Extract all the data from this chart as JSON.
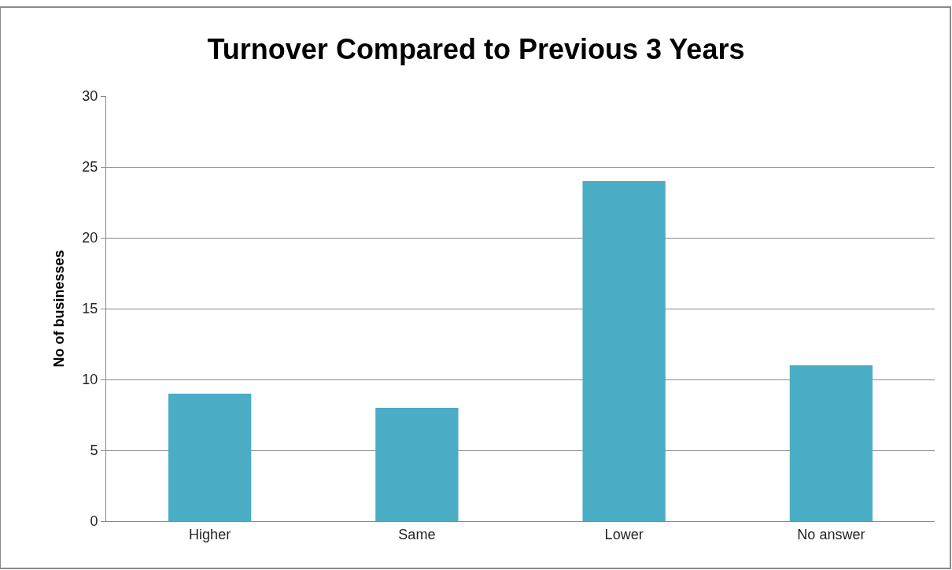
{
  "chart_data": {
    "type": "bar",
    "title": "Turnover Compared to Previous 3 Years",
    "ylabel": "No of businesses",
    "categories": [
      "Higher",
      "Same",
      "Lower",
      "No answer"
    ],
    "values": [
      9,
      8,
      24,
      11
    ],
    "color": "#4bacc6",
    "ylim": [
      0,
      30
    ],
    "yticks": [
      0,
      5,
      10,
      15,
      20,
      25,
      30
    ],
    "grid": "y",
    "legend": false
  }
}
